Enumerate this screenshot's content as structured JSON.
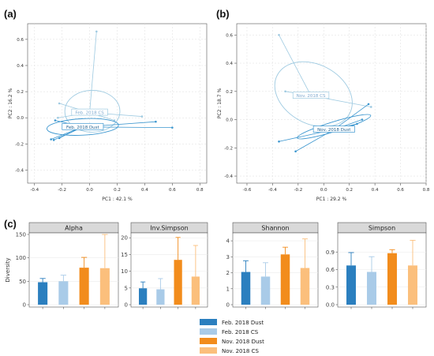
{
  "panel_labels": [
    "(a)",
    "(b)",
    "(c)"
  ],
  "colors": {
    "feb_dust": "#2b7fbf",
    "feb_cs": "#a9cbe8",
    "nov_dust": "#f28c1c",
    "nov_cs": "#fbbf7c",
    "pcoa": "#3b96cf",
    "pcoa_light": "#9ecae1"
  },
  "chart_data": [
    {
      "type": "scatter",
      "panel": "(a)",
      "xlabel": "PC1 : 42.1 %",
      "ylabel": "PC2 : 16.2 %",
      "xlim": [
        -0.45,
        0.85
      ],
      "ylim": [
        -0.5,
        0.72
      ],
      "xticks": [
        -0.4,
        -0.2,
        0.0,
        0.2,
        0.4,
        0.6,
        0.8
      ],
      "yticks": [
        -0.4,
        -0.2,
        0.0,
        0.2,
        0.4,
        0.6
      ],
      "groups": [
        {
          "name": "Feb. 2018 CS",
          "centroid": [
            0.0,
            0.04
          ],
          "ellipse": {
            "cx": 0.02,
            "cy": 0.05,
            "rx": 0.2,
            "ry": 0.16,
            "angle": 0
          },
          "points": [
            [
              0.05,
              0.66
            ],
            [
              -0.22,
              0.11
            ],
            [
              -0.23,
              0.0
            ],
            [
              0.18,
              -0.02
            ],
            [
              0.38,
              0.01
            ],
            [
              0.07,
              0.02
            ]
          ]
        },
        {
          "name": "Feb. 2018 Dust",
          "centroid": [
            -0.05,
            -0.07
          ],
          "ellipse": {
            "cx": -0.05,
            "cy": -0.07,
            "rx": 0.26,
            "ry": 0.063,
            "angle": 3
          },
          "points": [
            [
              -0.26,
              -0.17
            ],
            [
              -0.28,
              -0.165
            ],
            [
              -0.22,
              -0.155
            ],
            [
              0.48,
              -0.03
            ],
            [
              0.6,
              -0.075
            ],
            [
              -0.25,
              -0.02
            ]
          ]
        }
      ],
      "grid": true
    },
    {
      "type": "scatter",
      "panel": "(b)",
      "xlabel": "PC1 : 29.2 %",
      "ylabel": "PC2 : 18.7 %",
      "xlim": [
        -0.68,
        0.8
      ],
      "ylim": [
        -0.45,
        0.68
      ],
      "xticks": [
        -0.6,
        -0.4,
        -0.2,
        0.0,
        0.2,
        0.4,
        0.6,
        0.8
      ],
      "yticks": [
        -0.4,
        -0.2,
        0.0,
        0.2,
        0.4,
        0.6
      ],
      "groups": [
        {
          "name": "Nov. 2018 CS",
          "centroid": [
            -0.1,
            0.17
          ],
          "ellipse": {
            "cx": -0.08,
            "cy": 0.18,
            "rx": 0.32,
            "ry": 0.21,
            "angle": -28
          },
          "points": [
            [
              -0.35,
              0.6
            ],
            [
              0.37,
              0.09
            ],
            [
              -0.3,
              0.2
            ]
          ]
        },
        {
          "name": "Nov. 2018 Dust",
          "centroid": [
            0.08,
            -0.07
          ],
          "ellipse": {
            "cx": 0.08,
            "cy": -0.05,
            "rx": 0.3,
            "ry": 0.035,
            "angle": 17
          },
          "points": [
            [
              -0.35,
              -0.155
            ],
            [
              -0.22,
              -0.225
            ],
            [
              0.35,
              0.11
            ],
            [
              0.3,
              0.0
            ],
            [
              0.26,
              -0.03
            ]
          ]
        }
      ],
      "grid": true
    },
    {
      "type": "bar",
      "panel": "(c)",
      "ylabel": "Diversity",
      "categories": [
        "Feb. 2018 Dust",
        "Feb. 2018 CS",
        "Nov. 2018 Dust",
        "Nov. 2018 CS"
      ],
      "facets": [
        {
          "title": "Alpha",
          "ylim": [
            0,
            150
          ],
          "yticks": [
            0,
            50,
            100,
            150
          ],
          "values": [
            48,
            50,
            79,
            78
          ],
          "errors": [
            8,
            13,
            22,
            72
          ]
        },
        {
          "title": "Inv.Simpson",
          "ylim": [
            0,
            21
          ],
          "yticks": [
            0,
            5,
            10,
            15,
            20
          ],
          "values": [
            4.9,
            4.6,
            13.4,
            8.4
          ],
          "errors": [
            1.9,
            3.2,
            6.7,
            9.3
          ]
        },
        {
          "title": "Shannon",
          "ylim": [
            0,
            4.4
          ],
          "yticks": [
            0,
            1,
            2,
            3,
            4
          ],
          "values": [
            2.05,
            1.76,
            3.15,
            2.3
          ],
          "errors": [
            0.7,
            0.87,
            0.45,
            1.82
          ]
        },
        {
          "title": "Simpson",
          "ylim": [
            0,
            1.2
          ],
          "yticks": [
            0.0,
            0.3,
            0.6,
            0.9
          ],
          "values": [
            0.67,
            0.56,
            0.88,
            0.67
          ],
          "errors": [
            0.22,
            0.26,
            0.06,
            0.43
          ]
        }
      ],
      "legend": "bottom-center"
    }
  ]
}
